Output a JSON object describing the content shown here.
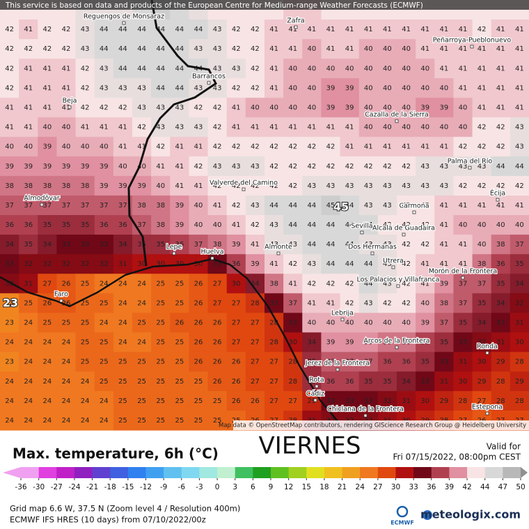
{
  "banner": "This service is based on data and products of the European Centre for Medium-range Weather Forecasts (ECMWF)",
  "attribution": "Map data © OpenStreetMap contributors, rendering GIScience Research Group @ Heidelberg University",
  "grid": [
    [
      42,
      42,
      42,
      42,
      43,
      43,
      43,
      44,
      45,
      44,
      43,
      42,
      42,
      42,
      42,
      41,
      41,
      42,
      42,
      42,
      42,
      42,
      42,
      42,
      42,
      42,
      42,
      42
    ],
    [
      42,
      41,
      42,
      42,
      43,
      44,
      44,
      44,
      44,
      44,
      44,
      43,
      42,
      42,
      41,
      41,
      41,
      41,
      41,
      41,
      41,
      41,
      41,
      41,
      41,
      42,
      41,
      41
    ],
    [
      42,
      42,
      42,
      42,
      43,
      44,
      44,
      44,
      44,
      44,
      43,
      43,
      42,
      42,
      41,
      41,
      40,
      41,
      41,
      40,
      40,
      40,
      41,
      41,
      41,
      41,
      41,
      41
    ],
    [
      42,
      41,
      41,
      41,
      42,
      43,
      44,
      44,
      44,
      44,
      44,
      43,
      43,
      42,
      41,
      40,
      40,
      40,
      40,
      40,
      40,
      40,
      40,
      41,
      41,
      41,
      41,
      41
    ],
    [
      42,
      41,
      41,
      41,
      42,
      43,
      43,
      43,
      44,
      44,
      43,
      43,
      42,
      42,
      41,
      40,
      40,
      39,
      39,
      40,
      40,
      40,
      40,
      40,
      41,
      41,
      41,
      41
    ],
    [
      41,
      41,
      41,
      41,
      42,
      42,
      42,
      43,
      43,
      43,
      42,
      42,
      41,
      40,
      40,
      40,
      40,
      39,
      39,
      40,
      40,
      40,
      39,
      39,
      40,
      41,
      41,
      41
    ],
    [
      41,
      41,
      40,
      40,
      41,
      41,
      41,
      42,
      43,
      43,
      43,
      42,
      41,
      41,
      41,
      41,
      41,
      41,
      41,
      40,
      40,
      40,
      40,
      40,
      40,
      42,
      42,
      43
    ],
    [
      40,
      40,
      39,
      40,
      40,
      40,
      41,
      41,
      42,
      41,
      41,
      42,
      42,
      42,
      42,
      42,
      42,
      42,
      41,
      41,
      41,
      41,
      41,
      41,
      42,
      42,
      42,
      43
    ],
    [
      39,
      39,
      39,
      39,
      39,
      39,
      40,
      40,
      41,
      41,
      42,
      43,
      43,
      43,
      42,
      42,
      42,
      42,
      42,
      42,
      42,
      42,
      43,
      43,
      43,
      43,
      44,
      44
    ],
    [
      38,
      38,
      38,
      38,
      38,
      39,
      39,
      39,
      40,
      41,
      41,
      42,
      42,
      42,
      42,
      42,
      43,
      43,
      43,
      43,
      43,
      43,
      43,
      43,
      42,
      42,
      42,
      42
    ],
    [
      37,
      37,
      37,
      37,
      37,
      37,
      37,
      38,
      38,
      39,
      40,
      41,
      42,
      43,
      44,
      44,
      44,
      45,
      44,
      43,
      43,
      42,
      42,
      41,
      41,
      41,
      41,
      41
    ],
    [
      36,
      36,
      35,
      35,
      35,
      36,
      36,
      37,
      38,
      39,
      40,
      40,
      41,
      42,
      43,
      44,
      44,
      44,
      44,
      44,
      42,
      42,
      42,
      41,
      40,
      40,
      40,
      40
    ],
    [
      34,
      35,
      34,
      33,
      33,
      33,
      34,
      35,
      35,
      36,
      37,
      38,
      39,
      41,
      43,
      43,
      44,
      44,
      44,
      43,
      43,
      42,
      42,
      41,
      41,
      40,
      38,
      37
    ],
    [
      33,
      32,
      32,
      32,
      32,
      32,
      31,
      30,
      30,
      30,
      30,
      33,
      36,
      39,
      41,
      42,
      43,
      44,
      44,
      44,
      43,
      42,
      41,
      41,
      41,
      38,
      36,
      35
    ],
    [
      32,
      31,
      27,
      26,
      25,
      24,
      24,
      24,
      25,
      25,
      26,
      27,
      30,
      34,
      38,
      41,
      42,
      42,
      42,
      44,
      43,
      42,
      41,
      39,
      37,
      37,
      35,
      34
    ],
    [
      23,
      25,
      26,
      26,
      25,
      25,
      24,
      24,
      25,
      25,
      26,
      27,
      27,
      28,
      33,
      37,
      41,
      41,
      42,
      43,
      42,
      42,
      40,
      38,
      37,
      35,
      34,
      32
    ],
    [
      23,
      24,
      25,
      25,
      25,
      24,
      24,
      25,
      25,
      26,
      26,
      26,
      27,
      27,
      28,
      33,
      40,
      40,
      40,
      40,
      40,
      40,
      39,
      37,
      35,
      34,
      33,
      31
    ],
    [
      24,
      24,
      24,
      24,
      25,
      25,
      24,
      24,
      25,
      25,
      26,
      26,
      27,
      27,
      28,
      30,
      34,
      39,
      39,
      39,
      38,
      38,
      36,
      35,
      33,
      32,
      31,
      30
    ],
    [
      23,
      24,
      24,
      24,
      25,
      25,
      25,
      25,
      25,
      25,
      26,
      26,
      26,
      27,
      27,
      28,
      35,
      37,
      37,
      37,
      36,
      36,
      35,
      33,
      31,
      30,
      29,
      28
    ],
    [
      24,
      24,
      24,
      24,
      24,
      25,
      25,
      25,
      25,
      25,
      25,
      26,
      26,
      27,
      27,
      28,
      35,
      36,
      36,
      35,
      35,
      34,
      33,
      31,
      30,
      29,
      28,
      29
    ],
    [
      24,
      24,
      24,
      24,
      24,
      24,
      25,
      25,
      25,
      25,
      25,
      25,
      26,
      26,
      27,
      27,
      29,
      33,
      33,
      33,
      32,
      31,
      30,
      29,
      28,
      27,
      28,
      28
    ],
    [
      24,
      24,
      24,
      24,
      24,
      24,
      25,
      25,
      25,
      25,
      25,
      25,
      25,
      26,
      27,
      28,
      31,
      32,
      32,
      32,
      31,
      30,
      29,
      28,
      27,
      26,
      27,
      27
    ]
  ],
  "highlights": [
    45,
    23
  ],
  "places": [
    "Reguengos de Monsaraz",
    "Zafra",
    "Peñarroya-Pueblonuevo",
    "Barrancos",
    "Beja",
    "Cazalla de la Sierra",
    "Palma del Río",
    "Écija",
    "Valverde del Camino",
    "Almodôvar",
    "Carmona",
    "Sevilla",
    "Alcalá de Guadaíra",
    "Lepe",
    "Huelva",
    "Almonte",
    "Dos Hermanas",
    "Utrera",
    "Morón de la Frontera",
    "Los Palacios y Villafranca",
    "Faro",
    "Lebrija",
    "Arcos de la Frontera",
    "Ronda",
    "Jerez de la Frontera",
    "Rota",
    "Cádiz",
    "Chiclana de la Frontera",
    "Estepona"
  ],
  "legend": {
    "title": "Max. temperature, 6h (°C)",
    "day": "VIERNES",
    "valid_label": "Valid for",
    "valid_time": "Fri 07/15/2022, 08:00pm CEST",
    "colorbar": {
      "ticks": [
        -36,
        -30,
        -27,
        -24,
        -21,
        -18,
        -15,
        -12,
        -9,
        -6,
        -3,
        0,
        3,
        6,
        9,
        12,
        15,
        18,
        21,
        24,
        27,
        30,
        33,
        36,
        39,
        42,
        44,
        47,
        50
      ],
      "colors": [
        "#f0a0f0",
        "#e040e0",
        "#c020c8",
        "#9020c0",
        "#6040d0",
        "#4060e0",
        "#3080f0",
        "#40a0f0",
        "#60c0f0",
        "#80d8f0",
        "#a0e8e0",
        "#c0f0d0",
        "#40c060",
        "#20a020",
        "#60c020",
        "#a0d020",
        "#e0e020",
        "#f0c020",
        "#f0a020",
        "#f07820",
        "#e04810",
        "#b01010",
        "#700818",
        "#b04050",
        "#e090a0",
        "#f8e4e4",
        "#d8d8d8",
        "#b8b8b8",
        "#909090"
      ]
    }
  },
  "footer": {
    "grid_info": "Grid map 6.6 W, 37.5 N (Zoom level 4 / Resolution 400m)",
    "model_info": "ECMWF IFS HRES (10 days) from 07/10/2022/00z",
    "ecmwf_logo": "ECMWF",
    "brand": "meteologix.com"
  }
}
